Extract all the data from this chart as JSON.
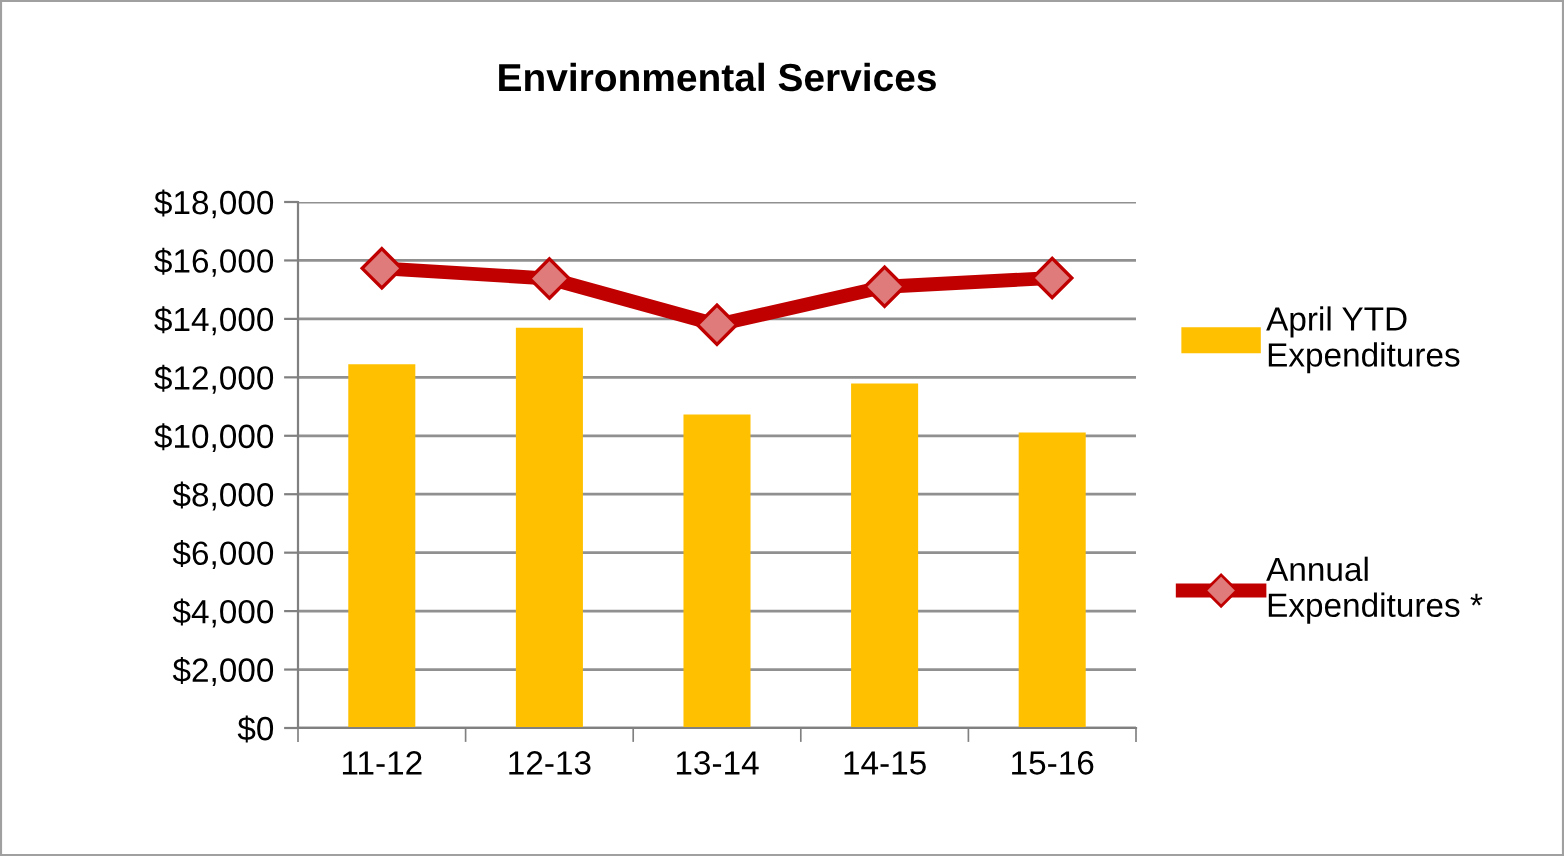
{
  "chart_data": {
    "type": "bar",
    "title": "Environmental Services",
    "categories": [
      "11-12",
      "12-13",
      "13-14",
      "14-15",
      "15-16"
    ],
    "series": [
      {
        "name": "April YTD\nExpenditures",
        "color": "#ffc000",
        "values": [
          12450,
          13700,
          10730,
          11790,
          10110
        ]
      },
      {
        "name": "Annual\nExpenditures *",
        "type": "line",
        "color": "#c00000",
        "marker": "diamond",
        "values": [
          15730,
          15380,
          13800,
          15100,
          15400
        ]
      }
    ],
    "ylim": [
      0,
      18000
    ],
    "yticks": [
      {
        "value": 0,
        "label": "$0"
      },
      {
        "value": 2000,
        "label": "$2,000"
      },
      {
        "value": 4000,
        "label": "$4,000"
      },
      {
        "value": 6000,
        "label": "$6,000"
      },
      {
        "value": 8000,
        "label": "$8,000"
      },
      {
        "value": 10000,
        "label": "$10,000"
      },
      {
        "value": 12000,
        "label": "$12,000"
      },
      {
        "value": 14000,
        "label": "$14,000"
      },
      {
        "value": 16000,
        "label": "$16,000"
      },
      {
        "value": 18000,
        "label": "$18,000"
      }
    ],
    "grid": "y",
    "legend": "right"
  }
}
